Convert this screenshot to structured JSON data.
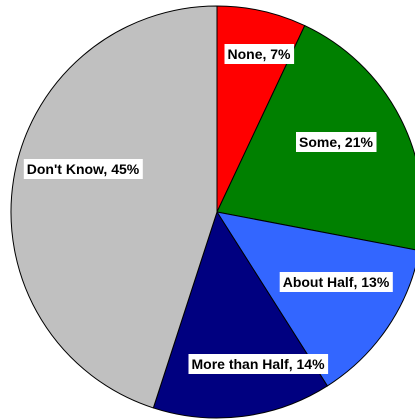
{
  "chart_data": {
    "type": "pie",
    "title": "",
    "start_angle_deg": 0,
    "direction": "clockwise",
    "slices": [
      {
        "label": "None, 7%",
        "category": "None",
        "value": 7,
        "color": "#ff0000"
      },
      {
        "label": "Some, 21%",
        "category": "Some",
        "value": 21,
        "color": "#008000"
      },
      {
        "label": "About Half, 13%",
        "category": "About Half",
        "value": 13,
        "color": "#3366ff"
      },
      {
        "label": "More than Half, 14%",
        "category": "More than Half",
        "value": 14,
        "color": "#000080"
      },
      {
        "label": "Don't Know, 45%",
        "category": "Don't Know",
        "value": 45,
        "color": "#c0c0c0"
      }
    ]
  }
}
